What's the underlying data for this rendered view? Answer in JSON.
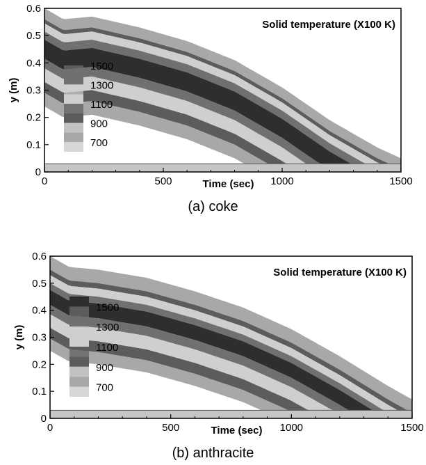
{
  "chart_data": [
    {
      "type": "heatmap",
      "caption": "(a)  coke",
      "title": "Solid temperature (X100 K)",
      "xlabel": "Time (sec)",
      "ylabel": "y (m)",
      "xlim": [
        0,
        1500
      ],
      "ylim": [
        0,
        0.6
      ],
      "xticks": [
        "0",
        "500",
        "1000",
        "1500"
      ],
      "yticks": [
        "0",
        "0.1",
        "0.2",
        "0.3",
        "0.4",
        "0.5",
        "0.6"
      ],
      "legend": {
        "labels": [
          "1500",
          "1300",
          "1100",
          "900",
          "700"
        ],
        "placement": "left"
      },
      "front_boundary": [
        [
          0,
          0.6
        ],
        [
          80,
          0.56
        ],
        [
          200,
          0.57
        ],
        [
          400,
          0.53
        ],
        [
          600,
          0.48
        ],
        [
          800,
          0.41
        ],
        [
          1000,
          0.31
        ],
        [
          1200,
          0.19
        ],
        [
          1400,
          0.09
        ],
        [
          1500,
          0.05
        ]
      ],
      "bottom_layer_y": 0.03,
      "bands": [
        {
          "label": "700",
          "offsets": [
            0.0,
            0.04
          ]
        },
        {
          "label": "900",
          "offsets": [
            0.04,
            0.055
          ]
        },
        {
          "label": "1100",
          "offsets": [
            0.055,
            0.085
          ]
        },
        {
          "label": "1300",
          "offsets": [
            0.085,
            0.115
          ]
        },
        {
          "label": "1500",
          "offsets": [
            0.115,
            0.185
          ]
        },
        {
          "label": "1300",
          "offsets": [
            0.185,
            0.22
          ]
        },
        {
          "label": "1100",
          "offsets": [
            0.22,
            0.27
          ]
        },
        {
          "label": "900",
          "offsets": [
            0.27,
            0.31
          ]
        },
        {
          "label": "700",
          "offsets": [
            0.31,
            0.36
          ]
        }
      ]
    },
    {
      "type": "heatmap",
      "caption": "(b)  anthracite",
      "title": "Solid temperature (X100 K)",
      "xlabel": "Time (sec)",
      "ylabel": "y (m)",
      "xlim": [
        0,
        1500
      ],
      "ylim": [
        0,
        0.6
      ],
      "xticks": [
        "0",
        "500",
        "1000",
        "1500"
      ],
      "yticks": [
        "0",
        "0.1",
        "0.2",
        "0.3",
        "0.4",
        "0.5",
        "0.6"
      ],
      "legend": {
        "labels": [
          "1500",
          "1300",
          "1100",
          "900",
          "700"
        ],
        "placement": "left"
      },
      "front_boundary": [
        [
          0,
          0.6
        ],
        [
          80,
          0.56
        ],
        [
          200,
          0.55
        ],
        [
          400,
          0.52
        ],
        [
          600,
          0.47
        ],
        [
          800,
          0.41
        ],
        [
          1000,
          0.33
        ],
        [
          1200,
          0.23
        ],
        [
          1400,
          0.12
        ],
        [
          1500,
          0.07
        ]
      ],
      "bottom_layer_y": 0.03,
      "bands": [
        {
          "label": "700",
          "offsets": [
            0.0,
            0.05
          ]
        },
        {
          "label": "900",
          "offsets": [
            0.05,
            0.07
          ]
        },
        {
          "label": "1100",
          "offsets": [
            0.07,
            0.1
          ]
        },
        {
          "label": "1300",
          "offsets": [
            0.1,
            0.125
          ]
        },
        {
          "label": "1500",
          "offsets": [
            0.125,
            0.18
          ]
        },
        {
          "label": "1300",
          "offsets": [
            0.18,
            0.215
          ]
        },
        {
          "label": "1100",
          "offsets": [
            0.215,
            0.265
          ]
        },
        {
          "label": "900",
          "offsets": [
            0.265,
            0.305
          ]
        },
        {
          "label": "700",
          "offsets": [
            0.305,
            0.35
          ]
        }
      ]
    }
  ],
  "colors": {
    "1500": "#2e2e2e",
    "1300": "#707070",
    "1100": "#cfcfcf",
    "900": "#5c5c5c",
    "700": "#a8a8a8",
    "bottom_layer": "#c6c6c6",
    "background": "#ffffff"
  }
}
